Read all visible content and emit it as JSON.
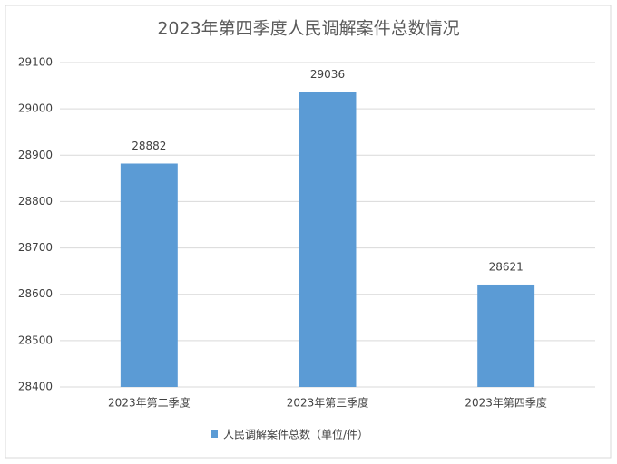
{
  "chart_data": {
    "type": "bar",
    "title": "2023年第四季度人民调解案件总数情况",
    "categories": [
      "2023年第二季度",
      "2023年第三季度",
      "2023年第四季度"
    ],
    "series": [
      {
        "name": "人民调解案件总数（单位/件）",
        "color": "#5b9bd5",
        "values": [
          28882,
          29036,
          28621
        ]
      }
    ],
    "ylim": [
      28400,
      29100
    ],
    "yticks": [
      28400,
      28500,
      28600,
      28700,
      28800,
      28900,
      29000,
      29100
    ],
    "grid": true,
    "legend": "bottom"
  }
}
